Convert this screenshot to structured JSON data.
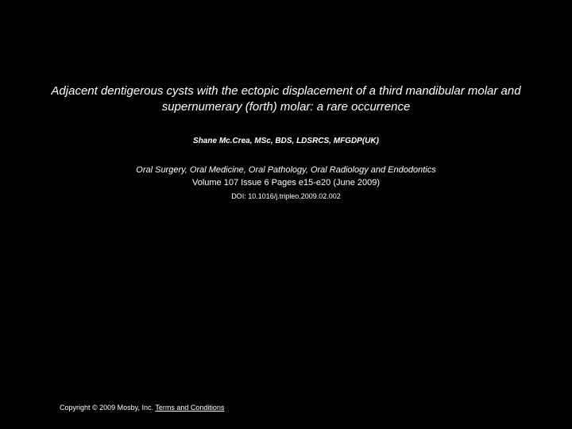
{
  "title": "Adjacent dentigerous cysts with the ectopic displacement of a third mandibular molar and supernumerary (forth) molar: a rare occurrence",
  "author": "Shane Mc.Crea, MSc, BDS, LDSRCS, MFGDP(UK)",
  "journal": "Oral Surgery, Oral Medicine, Oral Pathology, Oral Radiology and Endodontics",
  "volume": "Volume 107 Issue 6 Pages e15-e20 (June 2009)",
  "doi": "DOI: 10.1016/j.tripleo.2009.02.002",
  "copyright_prefix": "Copyright © 2009 Mosby, Inc. ",
  "terms": "Terms and Conditions",
  "styles": {
    "background_color": "#000000",
    "text_color": "#ffffff",
    "title_fontsize": 15,
    "author_fontsize": 10,
    "journal_fontsize": 11,
    "doi_fontsize": 9,
    "copyright_fontsize": 9
  }
}
